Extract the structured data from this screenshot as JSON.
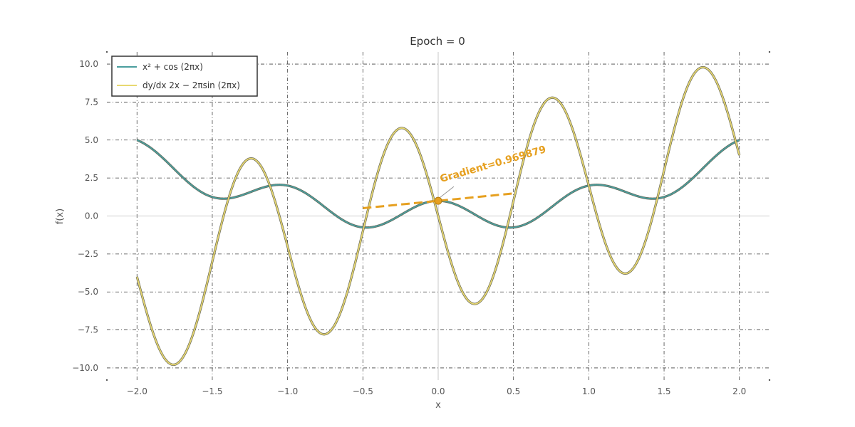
{
  "chart_data": {
    "type": "line",
    "title": "Epoch = 0",
    "xlabel": "x",
    "ylabel": "f(x)",
    "xlim": [
      -2.2,
      2.2
    ],
    "ylim": [
      -10.8,
      10.8
    ],
    "xticks": [
      -2.0,
      -1.5,
      -1.0,
      -0.5,
      0.0,
      0.5,
      1.0,
      1.5,
      2.0
    ],
    "xtick_labels": [
      "−2.0",
      "−1.5",
      "−1.0",
      "−0.5",
      "0.0",
      "0.5",
      "1.0",
      "1.5",
      "2.0"
    ],
    "yticks": [
      10.0,
      7.5,
      5.0,
      2.5,
      0.0,
      -2.5,
      -5.0,
      -7.5,
      -10.0
    ],
    "ytick_labels": [
      "10.0",
      "7.5",
      "5.0",
      "2.5",
      "0.0",
      "−2.5",
      "−5.0",
      "−7.5",
      "−10.0"
    ],
    "grid": true,
    "legend_position": "top-left",
    "series": [
      {
        "name": "x² + cos (2πx)",
        "color": "#4a9e9e",
        "x_range": [
          -2.0,
          2.0
        ],
        "function": "x^2 + cos(2*pi*x)"
      },
      {
        "name": "dy/dx  2x − 2πsin (2πx)",
        "color": "#e8d870",
        "x_range": [
          -2.0,
          2.0
        ],
        "function": "2x - 2*pi*sin(2*pi*x)"
      }
    ],
    "tangent": {
      "point": [
        0.0,
        1.0
      ],
      "slope": 0.969879,
      "x_range": [
        -0.5,
        0.5
      ],
      "color": "#e6a020"
    },
    "annotation": {
      "text": "Gradient=0.969879",
      "color": "#e6a020"
    }
  }
}
